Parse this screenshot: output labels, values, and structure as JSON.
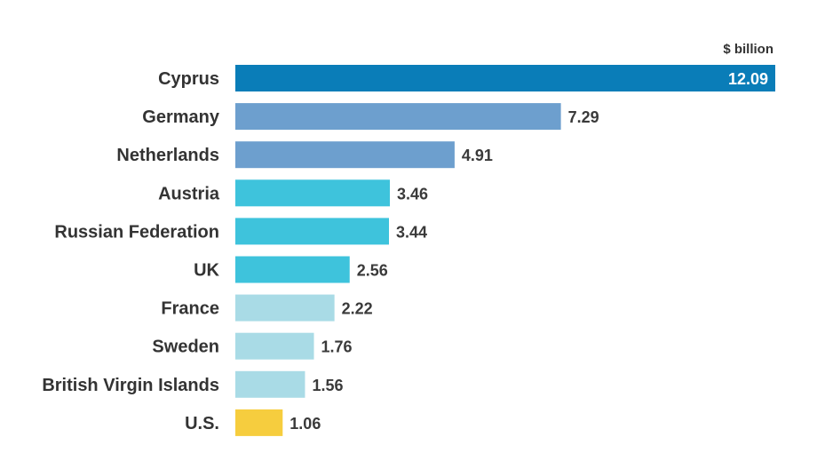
{
  "chart_data": {
    "type": "bar",
    "orientation": "horizontal",
    "unit_label": "$ billion",
    "categories": [
      "Cyprus",
      "Germany",
      "Netherlands",
      "Austria",
      "Russian Federation",
      "UK",
      "France",
      "Sweden",
      "British Virgin Islands",
      "U.S."
    ],
    "values": [
      12.09,
      7.29,
      4.91,
      3.46,
      3.44,
      2.56,
      2.22,
      1.76,
      1.56,
      1.06
    ],
    "value_labels": [
      "12.09",
      "7.29",
      "4.91",
      "3.46",
      "3.44",
      "2.56",
      "2.22",
      "1.76",
      "1.56",
      "1.06"
    ],
    "colors": [
      "#0a7db8",
      "#6d9fce",
      "#6d9fce",
      "#3ec3dc",
      "#3ec3dc",
      "#3ec3dc",
      "#a9dbe6",
      "#a9dbe6",
      "#a9dbe6",
      "#f6cd3e"
    ],
    "xlim": [
      0,
      12.09
    ],
    "grid": false,
    "legend": "none"
  }
}
